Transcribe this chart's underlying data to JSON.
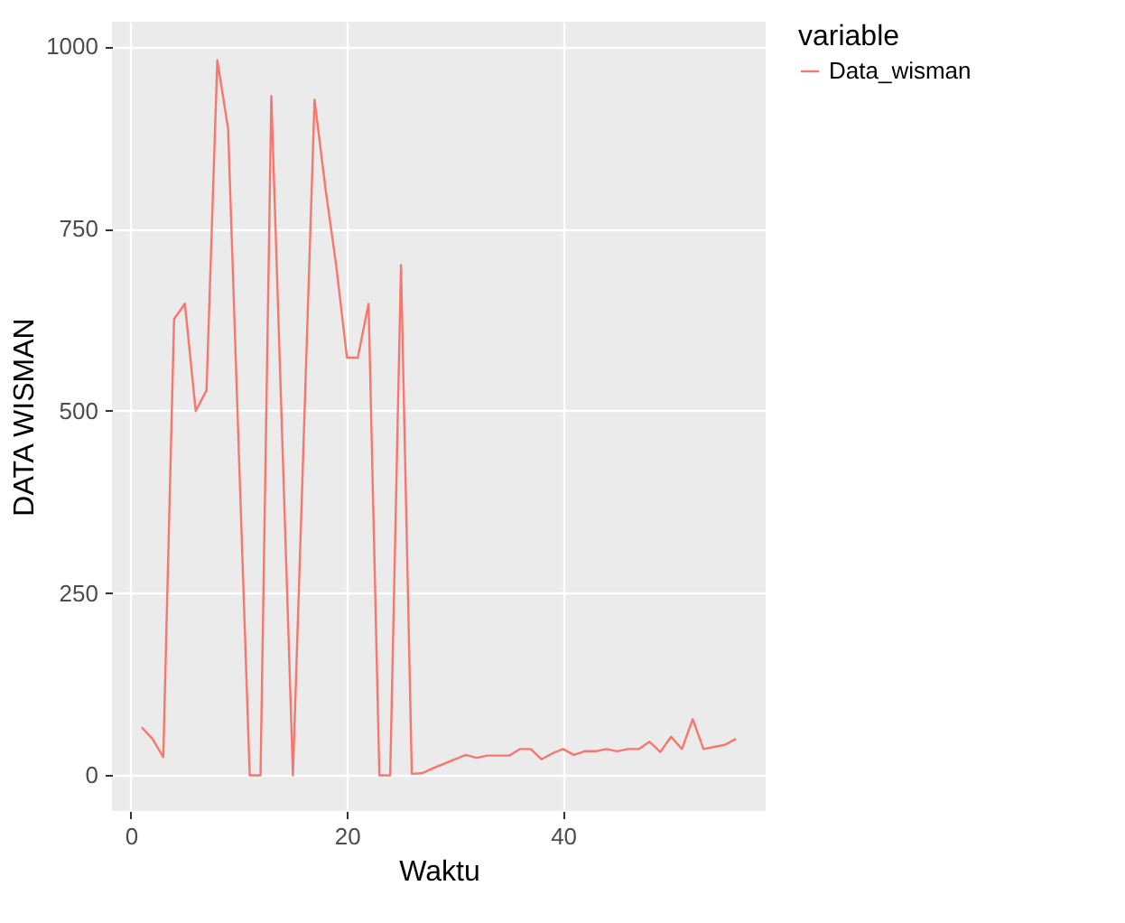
{
  "chart_data": {
    "type": "line",
    "xlabel": "Waktu",
    "ylabel": "DATA WISMAN",
    "legend_title": "variable",
    "legend": "right",
    "grid": true,
    "x": [
      1,
      2,
      3,
      4,
      5,
      6,
      7,
      8,
      9,
      10,
      11,
      12,
      13,
      14,
      15,
      16,
      17,
      18,
      19,
      20,
      21,
      22,
      23,
      24,
      25,
      26,
      27,
      28,
      29,
      30,
      31,
      32,
      33,
      34,
      35,
      36,
      37,
      38,
      39,
      40,
      41,
      42,
      43,
      44,
      45,
      46,
      47,
      48,
      49,
      50,
      51,
      52,
      53,
      54,
      55,
      56
    ],
    "series": [
      {
        "name": "Data_wisman",
        "color": "#f8766d",
        "values": [
          66,
          50,
          25,
          626,
          647,
          500,
          528,
          981,
          887,
          440,
          0,
          0,
          932,
          466,
          0,
          464,
          927,
          806,
          700,
          573,
          573,
          647,
          0,
          0,
          700,
          2,
          3,
          10,
          16,
          22,
          28,
          24,
          27,
          27,
          27,
          36,
          36,
          22,
          30,
          36,
          28,
          33,
          33,
          36,
          33,
          36,
          36,
          46,
          32,
          53,
          36,
          77,
          36,
          39,
          42,
          50
        ]
      }
    ],
    "xlim": [
      -1.75,
      58.75
    ],
    "ylim": [
      -49,
      1034
    ],
    "xticks": [
      0,
      20,
      40
    ],
    "yticks": [
      0,
      250,
      500,
      750,
      1000
    ]
  }
}
